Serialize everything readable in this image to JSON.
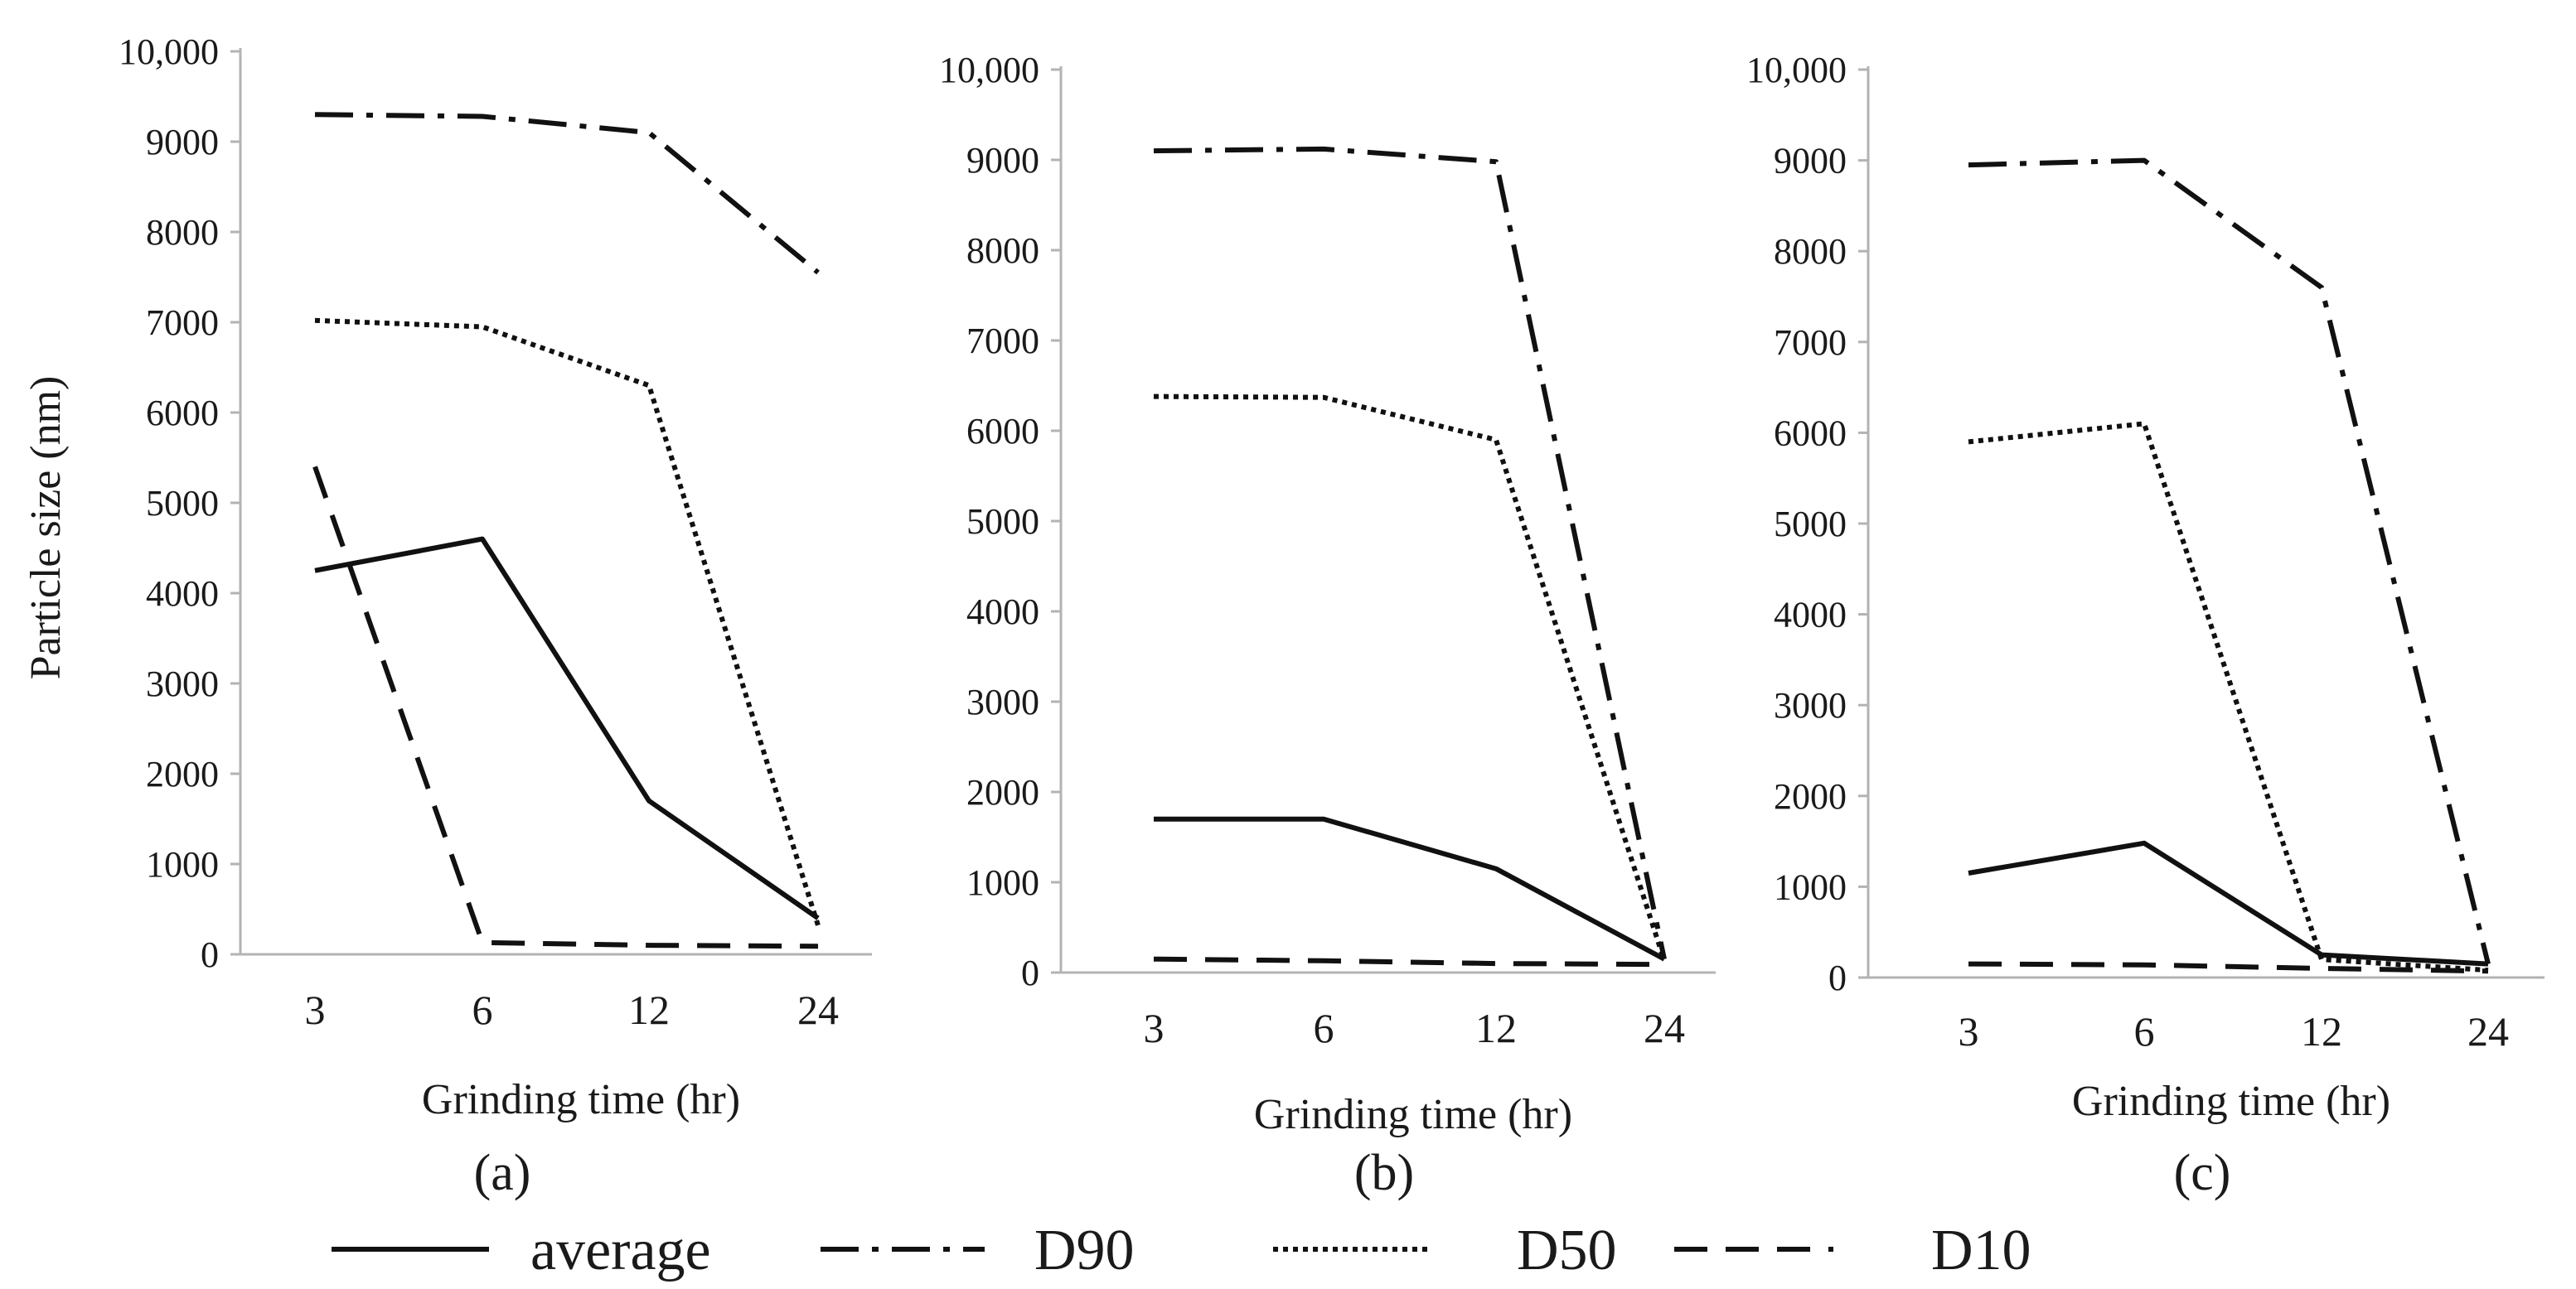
{
  "chart_data": [
    {
      "type": "line",
      "panel": "(a)",
      "categories": [
        "3",
        "6",
        "12",
        "24"
      ],
      "xlabel": "Grinding time (hr)",
      "ylabel": "Particle size (nm)",
      "ylim": [
        0,
        10000
      ],
      "yticks": [
        "0",
        "1000",
        "2000",
        "3000",
        "4000",
        "5000",
        "6000",
        "7000",
        "8000",
        "9000",
        "10,000"
      ],
      "series": [
        {
          "name": "average",
          "values": [
            4250,
            4600,
            1700,
            400
          ]
        },
        {
          "name": "D90",
          "values": [
            9300,
            9280,
            9100,
            7550
          ]
        },
        {
          "name": "D50",
          "values": [
            7020,
            6950,
            6300,
            320
          ]
        },
        {
          "name": "D10",
          "values": [
            5400,
            130,
            100,
            90
          ]
        }
      ]
    },
    {
      "type": "line",
      "panel": "(b)",
      "categories": [
        "3",
        "6",
        "12",
        "24"
      ],
      "xlabel": "Grinding time (hr)",
      "ylabel": "",
      "ylim": [
        0,
        10000
      ],
      "yticks": [
        "0",
        "1000",
        "2000",
        "3000",
        "4000",
        "5000",
        "6000",
        "7000",
        "8000",
        "9000",
        "10,000"
      ],
      "series": [
        {
          "name": "average",
          "values": [
            1700,
            1700,
            1150,
            150
          ]
        },
        {
          "name": "D90",
          "values": [
            9100,
            9120,
            8980,
            150
          ]
        },
        {
          "name": "D50",
          "values": [
            6380,
            6370,
            5900,
            130
          ]
        },
        {
          "name": "D10",
          "values": [
            150,
            130,
            100,
            90
          ]
        }
      ]
    },
    {
      "type": "line",
      "panel": "(c)",
      "categories": [
        "3",
        "6",
        "12",
        "24"
      ],
      "xlabel": "Grinding time (hr)",
      "ylabel": "",
      "ylim": [
        0,
        10000
      ],
      "yticks": [
        "0",
        "1000",
        "2000",
        "3000",
        "4000",
        "5000",
        "6000",
        "7000",
        "8000",
        "9000",
        "10,000"
      ],
      "series": [
        {
          "name": "average",
          "values": [
            1150,
            1480,
            250,
            150
          ]
        },
        {
          "name": "D90",
          "values": [
            8950,
            9000,
            7600,
            150
          ]
        },
        {
          "name": "D50",
          "values": [
            5900,
            6100,
            200,
            80
          ]
        },
        {
          "name": "D10",
          "values": [
            150,
            140,
            100,
            70
          ]
        }
      ]
    }
  ],
  "legend": {
    "placement": "bottom",
    "items": [
      "average",
      "D90",
      "D50",
      "D10"
    ]
  }
}
